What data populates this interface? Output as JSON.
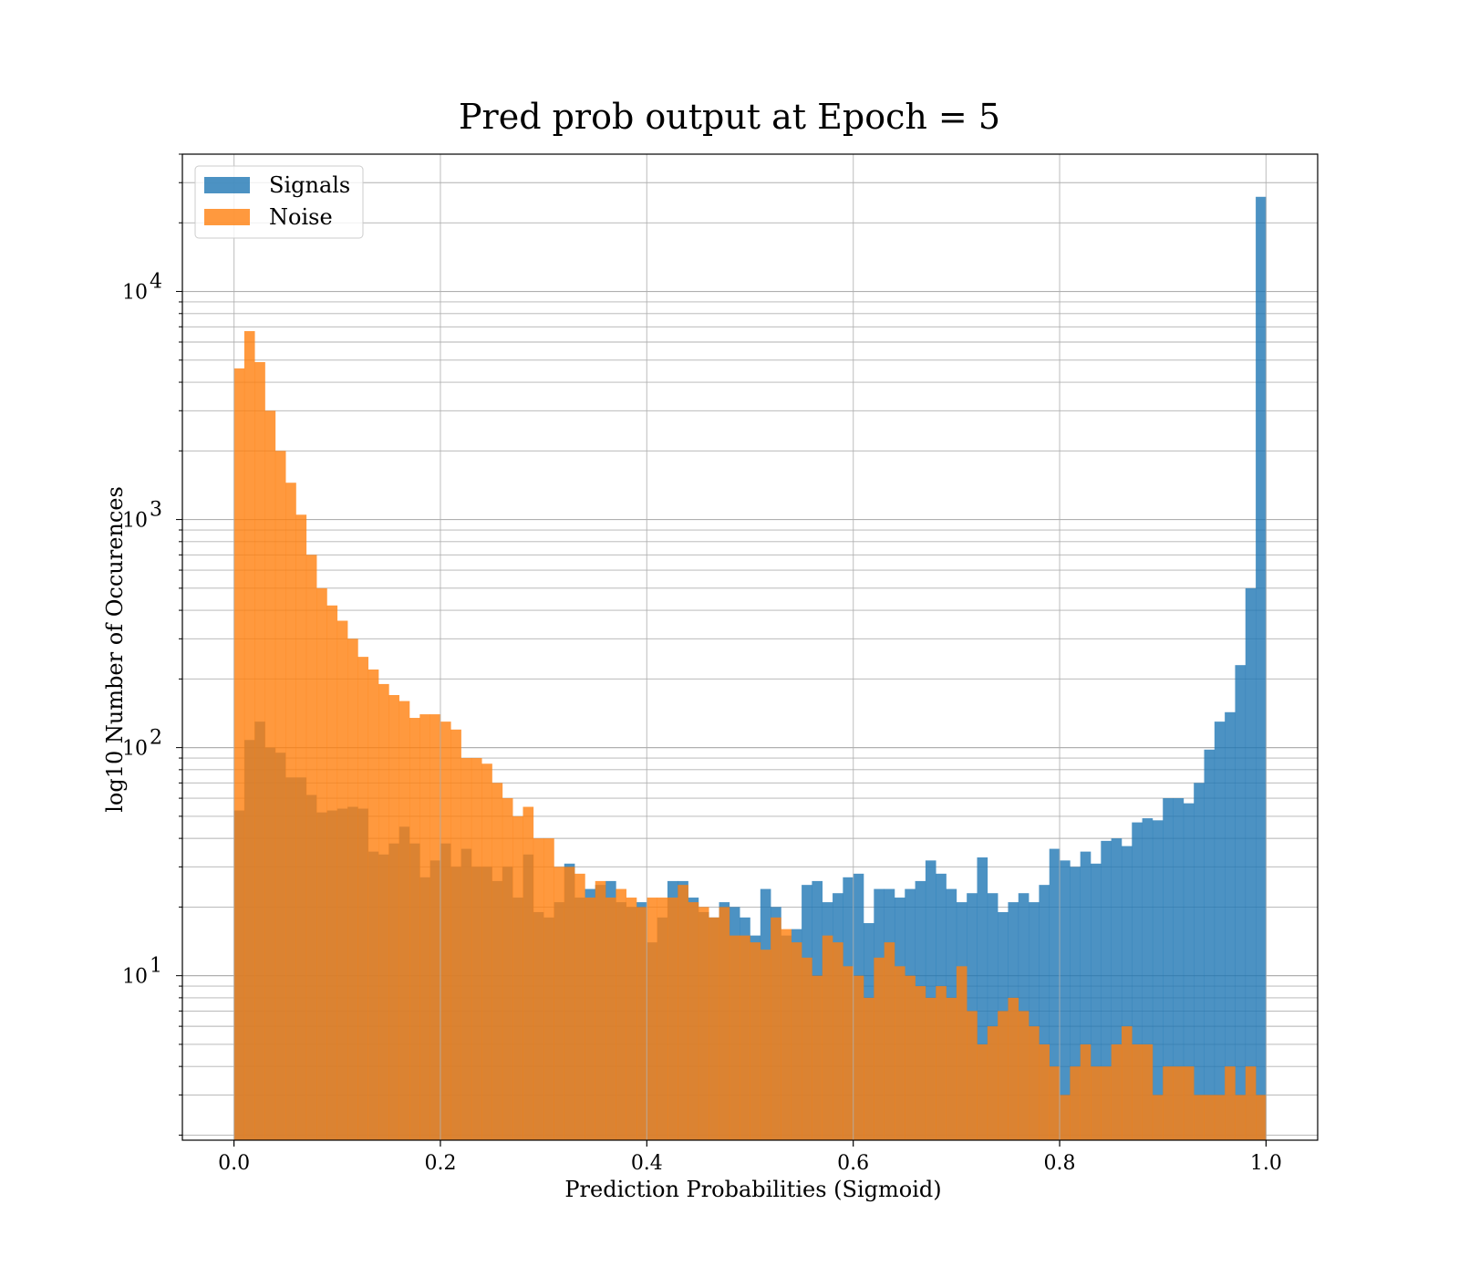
{
  "chart_data": {
    "type": "bar",
    "title": "Pred prob output at Epoch = 5",
    "xlabel": "Prediction Probabilities (Sigmoid)",
    "ylabel": "log10 Number of Occurences",
    "xlim": [
      -0.05,
      1.05
    ],
    "ylim": [
      1.9,
      40000
    ],
    "yscale": "log",
    "grid": true,
    "legend_position": "top-left",
    "bins": 100,
    "bin_range": [
      0,
      1
    ],
    "x_ticks": [
      "0.0",
      "0.2",
      "0.4",
      "0.6",
      "0.8",
      "1.0"
    ],
    "y_ticks": [
      {
        "base": "10",
        "exp": "1"
      },
      {
        "base": "10",
        "exp": "2"
      },
      {
        "base": "10",
        "exp": "3"
      },
      {
        "base": "10",
        "exp": "4"
      }
    ],
    "series": [
      {
        "name": "Signals",
        "color": "#1f77b4",
        "values": [
          53,
          108,
          130,
          100,
          95,
          74,
          74,
          62,
          52,
          53,
          54,
          55,
          54,
          35,
          34,
          38,
          45,
          38,
          27,
          32,
          38,
          30,
          36,
          30,
          30,
          26,
          30,
          22,
          34,
          19,
          18,
          21,
          31,
          22,
          24,
          25,
          26,
          21,
          20,
          21,
          14,
          18,
          26,
          26,
          22,
          19,
          18,
          21,
          20,
          18,
          15,
          24,
          20,
          15,
          16,
          25,
          26,
          21,
          23,
          27,
          28,
          17,
          24,
          24,
          22,
          24,
          26,
          32,
          28,
          24,
          21,
          23,
          33,
          23,
          19,
          21,
          23,
          21,
          25,
          36,
          32,
          30,
          35,
          31,
          39,
          40,
          37,
          47,
          49,
          48,
          60,
          60,
          57,
          70,
          98,
          130,
          143,
          230,
          500,
          26000
        ]
      },
      {
        "name": "Noise",
        "color": "#ff7f0e",
        "values": [
          4600,
          6700,
          4900,
          3000,
          2000,
          1450,
          1050,
          700,
          500,
          420,
          360,
          300,
          250,
          220,
          190,
          170,
          160,
          135,
          140,
          140,
          130,
          120,
          90,
          90,
          85,
          70,
          60,
          50,
          55,
          40,
          40,
          30,
          30,
          28,
          22,
          26,
          22,
          24,
          22,
          20,
          22,
          22,
          22,
          25,
          21,
          20,
          18,
          20,
          15,
          15,
          14,
          13,
          18,
          16,
          14,
          12,
          10,
          15,
          14,
          11,
          10,
          8,
          12,
          14,
          11,
          10,
          9,
          8,
          9,
          8,
          11,
          7,
          5,
          6,
          7,
          8,
          7,
          6,
          5,
          4,
          3,
          4,
          5,
          4,
          4,
          5,
          6,
          5,
          5,
          3,
          4,
          4,
          4,
          3,
          3,
          3,
          4,
          3,
          4,
          3
        ]
      }
    ]
  }
}
